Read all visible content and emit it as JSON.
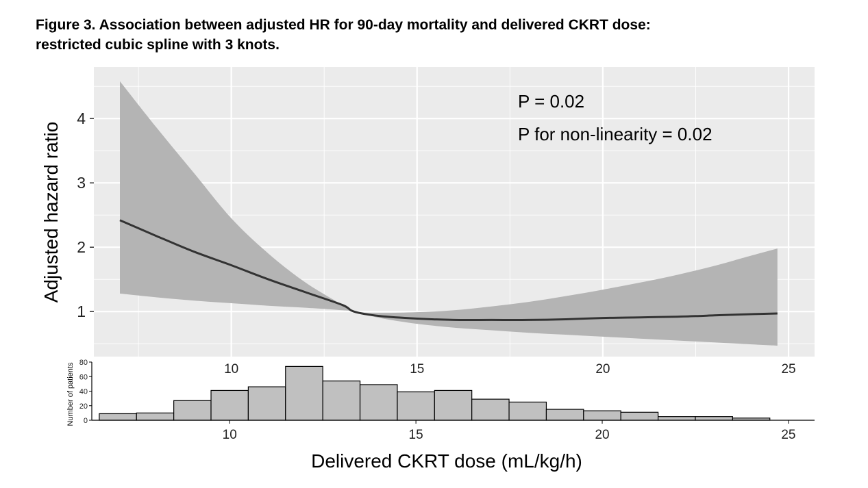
{
  "title_line1": "Figure 3. Association between adjusted HR for 90-day mortality and delivered CKRT dose:",
  "title_line2": "restricted cubic spline with 3 knots.",
  "annotations": {
    "p_value": "P = 0.02",
    "p_nonlinearity": "P for non-linearity = 0.02"
  },
  "colors": {
    "panel_bg": "#ebebeb",
    "grid": "#ffffff",
    "ribbon": "#b4b4b4",
    "line": "#333333",
    "bar_fill": "#c0c0c0",
    "bar_edge": "#000000"
  },
  "chart_data": [
    {
      "type": "line",
      "title": "Association between adjusted HR for 90-day mortality and delivered CKRT dose",
      "xlabel": "Delivered CKRT dose (mL/kg/h)",
      "ylabel": "Adjusted hazard ratio",
      "xlim": [
        6.3,
        25.7
      ],
      "ylim": [
        0.3,
        4.8
      ],
      "xticks": [
        10,
        15,
        20,
        25
      ],
      "yticks": [
        1,
        2,
        3,
        4
      ],
      "grid": true,
      "series": [
        {
          "name": "HR",
          "x": [
            7,
            8,
            9,
            10,
            11,
            12,
            13,
            13.3,
            14,
            15,
            16,
            17,
            18,
            19,
            20,
            21,
            22,
            23,
            24,
            24.7
          ],
          "values": [
            2.42,
            2.17,
            1.93,
            1.72,
            1.5,
            1.3,
            1.1,
            1.0,
            0.93,
            0.89,
            0.87,
            0.87,
            0.87,
            0.88,
            0.9,
            0.91,
            0.92,
            0.94,
            0.96,
            0.97
          ]
        },
        {
          "name": "upper 95% CI",
          "x": [
            7,
            8,
            9,
            10,
            11,
            12,
            13,
            13.3,
            14,
            15,
            16,
            17,
            18,
            19,
            20,
            21,
            22,
            23,
            24,
            24.7
          ],
          "values": [
            4.58,
            3.85,
            3.15,
            2.45,
            1.9,
            1.45,
            1.1,
            1.0,
            0.98,
            0.99,
            1.02,
            1.08,
            1.15,
            1.24,
            1.34,
            1.45,
            1.57,
            1.71,
            1.87,
            1.98
          ]
        },
        {
          "name": "lower 95% CI",
          "x": [
            7,
            8,
            9,
            10,
            11,
            12,
            13,
            13.3,
            14,
            15,
            16,
            17,
            18,
            19,
            20,
            21,
            22,
            23,
            24,
            24.7
          ],
          "values": [
            1.28,
            1.22,
            1.17,
            1.13,
            1.09,
            1.06,
            1.02,
            1.0,
            0.9,
            0.81,
            0.75,
            0.71,
            0.67,
            0.64,
            0.61,
            0.58,
            0.55,
            0.52,
            0.49,
            0.47
          ]
        }
      ],
      "annotations": [
        "P = 0.02",
        "P for non-linearity = 0.02"
      ]
    },
    {
      "type": "bar",
      "title": "",
      "xlabel": "Delivered CKRT dose (mL/kg/h)",
      "ylabel": "Number of patients",
      "xlim": [
        6.3,
        25.7
      ],
      "ylim": [
        0,
        80
      ],
      "xticks": [
        10,
        15,
        20,
        25
      ],
      "yticks": [
        0,
        20,
        40,
        60,
        80
      ],
      "bin_start": 6.5,
      "bin_width": 1,
      "values": [
        9,
        10,
        27,
        41,
        46,
        74,
        54,
        49,
        39,
        41,
        29,
        25,
        15,
        13,
        11,
        5,
        5,
        3
      ]
    }
  ]
}
